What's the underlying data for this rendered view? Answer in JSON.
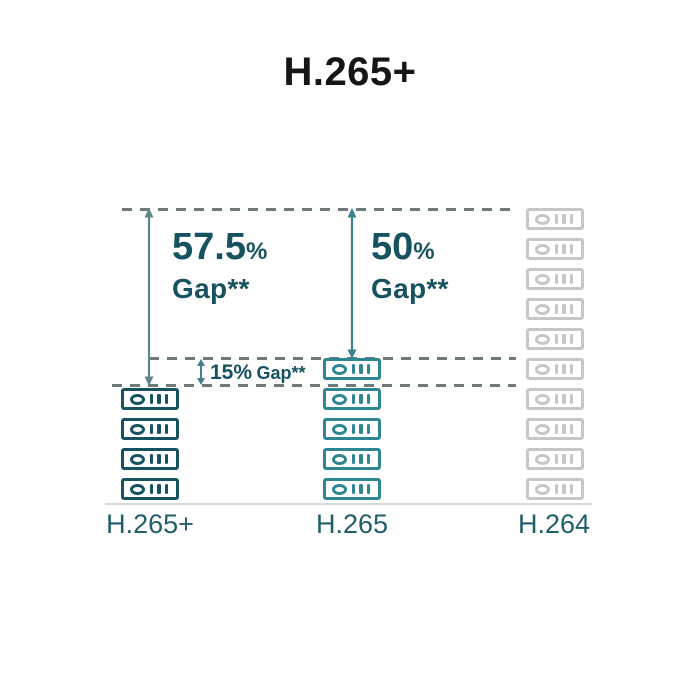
{
  "title": "H.265+",
  "colors": {
    "dark_teal": "#175260",
    "mid_teal": "#2e8691",
    "gray": "#c7c7c7",
    "dashed_line": "#6e7a7a",
    "arrow_left": "#5e868c",
    "arrow_mid": "#3a838d",
    "arrow_small": "#45808a",
    "label_teal": "#1f5f6b",
    "baseline": "#d8d8d8"
  },
  "chart_data": {
    "type": "bar",
    "subtype": "pictogram",
    "title": "H.265+",
    "categories": [
      "H.265+",
      "H.265",
      "H.264"
    ],
    "values": [
      4,
      5,
      10
    ],
    "unit_icon": "storage-server",
    "grid": false,
    "legend_position": "none",
    "annotations": [
      {
        "text": "57.5% Gap**",
        "between": [
          "H.264",
          "H.265+"
        ]
      },
      {
        "text": "50% Gap**",
        "between": [
          "H.264",
          "H.265"
        ]
      },
      {
        "text": "15% Gap**",
        "between": [
          "H.265",
          "H.265+"
        ]
      }
    ]
  },
  "annotations": {
    "gap1_value": "57.5",
    "gap1_pct": "%",
    "gap1_label": "Gap**",
    "gap2_value": "50",
    "gap2_pct": "%",
    "gap2_label": "Gap**",
    "gap3_value": "15%",
    "gap3_label": "Gap**"
  }
}
